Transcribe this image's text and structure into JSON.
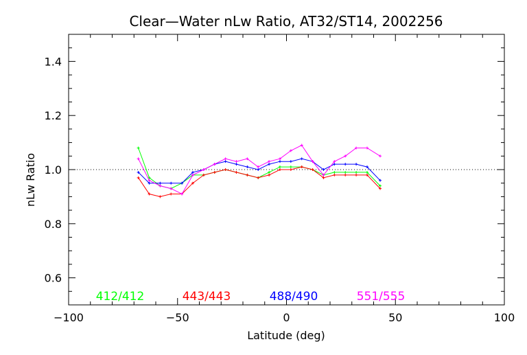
{
  "chart_data": {
    "type": "line",
    "title": "Clear—Water nLw Ratio, AT32/ST14, 2002256",
    "xlabel": "Latitude (deg)",
    "ylabel": "nLw Ratio",
    "xlim": [
      -100,
      100
    ],
    "ylim": [
      0.5,
      1.5
    ],
    "x_ticks": [
      -100,
      -50,
      0,
      50,
      100
    ],
    "y_ticks": [
      0.6,
      0.8,
      1.0,
      1.2,
      1.4
    ],
    "x_tick_labels": [
      "−100",
      "−50",
      "0",
      "50",
      "100"
    ],
    "y_tick_labels": [
      "0.6",
      "0.8",
      "1.0",
      "1.2",
      "1.4"
    ],
    "reference_line": 1.0,
    "grid": false,
    "legend_placement": "bottom inside plot",
    "series": [
      {
        "name": "412/412",
        "color": "#00ff00",
        "x": [
          -68,
          -63,
          -58,
          -53,
          -48,
          -43,
          -38,
          -33,
          -28,
          -23,
          -18,
          -13,
          -8,
          -3,
          2,
          7,
          12,
          17,
          22,
          27,
          32,
          37,
          43
        ],
        "y": [
          1.08,
          0.97,
          0.94,
          0.93,
          0.95,
          0.98,
          0.98,
          0.99,
          1.0,
          0.99,
          0.98,
          0.97,
          0.99,
          1.01,
          1.01,
          1.01,
          1.0,
          0.98,
          0.99,
          0.99,
          0.99,
          0.99,
          0.94
        ]
      },
      {
        "name": "443/443",
        "color": "#ff0000",
        "x": [
          -68,
          -63,
          -58,
          -53,
          -48,
          -43,
          -38,
          -33,
          -28,
          -23,
          -18,
          -13,
          -8,
          -3,
          2,
          7,
          12,
          17,
          22,
          27,
          32,
          37,
          43
        ],
        "y": [
          0.97,
          0.91,
          0.9,
          0.91,
          0.91,
          0.95,
          0.98,
          0.99,
          1.0,
          0.99,
          0.98,
          0.97,
          0.98,
          1.0,
          1.0,
          1.01,
          1.0,
          0.97,
          0.98,
          0.98,
          0.98,
          0.98,
          0.93
        ]
      },
      {
        "name": "488/490",
        "color": "#0000ff",
        "x": [
          -68,
          -63,
          -58,
          -53,
          -48,
          -43,
          -38,
          -33,
          -28,
          -23,
          -18,
          -13,
          -8,
          -3,
          2,
          7,
          12,
          17,
          22,
          27,
          32,
          37,
          43
        ],
        "y": [
          0.99,
          0.95,
          0.95,
          0.95,
          0.95,
          0.99,
          1.0,
          1.02,
          1.03,
          1.02,
          1.01,
          1.0,
          1.02,
          1.03,
          1.03,
          1.04,
          1.03,
          1.0,
          1.02,
          1.02,
          1.02,
          1.01,
          0.96
        ]
      },
      {
        "name": "551/555",
        "color": "#ff00ff",
        "x": [
          -68,
          -63,
          -58,
          -53,
          -48,
          -43,
          -38,
          -33,
          -28,
          -23,
          -18,
          -13,
          -8,
          -3,
          2,
          7,
          12,
          17,
          22,
          27,
          32,
          37,
          43
        ],
        "y": [
          1.04,
          0.96,
          0.94,
          0.93,
          0.91,
          0.98,
          1.0,
          1.02,
          1.04,
          1.03,
          1.04,
          1.01,
          1.03,
          1.04,
          1.07,
          1.09,
          1.03,
          0.98,
          1.03,
          1.05,
          1.08,
          1.08,
          1.05
        ]
      }
    ]
  }
}
